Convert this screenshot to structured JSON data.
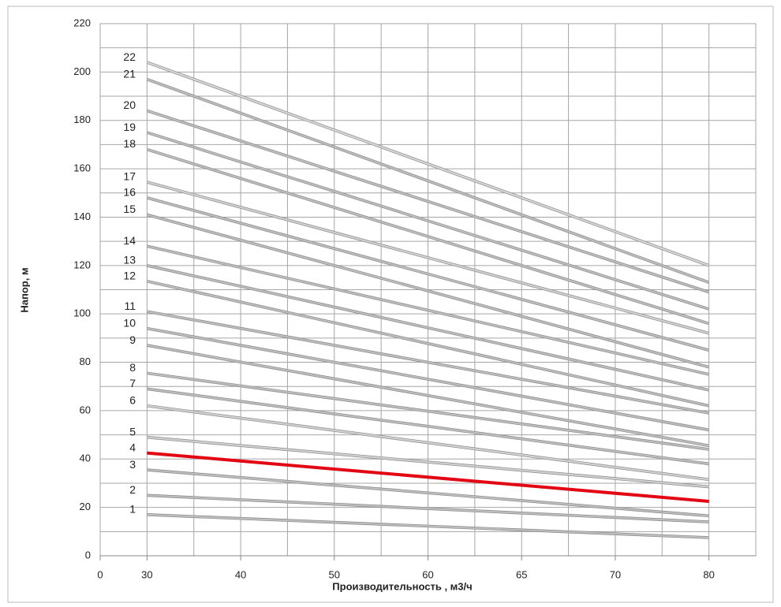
{
  "chart_data": {
    "type": "line",
    "x_label": "Производительность , м3/ч",
    "y_label": "Напор, м",
    "x": [
      30,
      80
    ],
    "xticks": [
      0,
      30,
      40,
      50,
      60,
      65,
      70,
      80
    ],
    "ylim": [
      0,
      220
    ],
    "yticks": [
      0,
      20,
      40,
      60,
      80,
      100,
      120,
      140,
      160,
      180,
      200,
      220
    ],
    "grid": true,
    "series": [
      {
        "name": "1",
        "color": "#bdbdbd",
        "values": [
          17,
          7.5
        ]
      },
      {
        "name": "2",
        "color": "#bdbdbd",
        "values": [
          25,
          14
        ]
      },
      {
        "name": "3",
        "color": "#bdbdbd",
        "values": [
          35.5,
          16.5
        ]
      },
      {
        "name": "4",
        "color": "#e30613",
        "values": [
          42.5,
          22.5
        ]
      },
      {
        "name": "5",
        "color": "#d0d0d0",
        "values": [
          49,
          28.5
        ]
      },
      {
        "name": "6",
        "color": "#d0d0d0",
        "values": [
          62,
          31.5
        ]
      },
      {
        "name": "7",
        "color": "#bdbdbd",
        "values": [
          69,
          38
        ]
      },
      {
        "name": "8",
        "color": "#bdbdbd",
        "values": [
          75.5,
          44
        ]
      },
      {
        "name": "9",
        "color": "#bdbdbd",
        "values": [
          87,
          45.5
        ]
      },
      {
        "name": "10",
        "color": "#bdbdbd",
        "values": [
          94,
          52
        ]
      },
      {
        "name": "11",
        "color": "#bdbdbd",
        "values": [
          101,
          59
        ]
      },
      {
        "name": "12",
        "color": "#bdbdbd",
        "values": [
          113.5,
          62
        ]
      },
      {
        "name": "13",
        "color": "#bdbdbd",
        "values": [
          120,
          68.5
        ]
      },
      {
        "name": "14",
        "color": "#bdbdbd",
        "values": [
          128,
          75
        ]
      },
      {
        "name": "15",
        "color": "#bdbdbd",
        "values": [
          141,
          78
        ]
      },
      {
        "name": "16",
        "color": "#bdbdbd",
        "values": [
          148,
          85
        ]
      },
      {
        "name": "17",
        "color": "#d0d0d0",
        "values": [
          154.5,
          92
        ]
      },
      {
        "name": "18",
        "color": "#bdbdbd",
        "values": [
          168,
          96
        ]
      },
      {
        "name": "19",
        "color": "#bdbdbd",
        "values": [
          175,
          102
        ]
      },
      {
        "name": "20",
        "color": "#bdbdbd",
        "values": [
          184,
          109
        ]
      },
      {
        "name": "21",
        "color": "#bdbdbd",
        "values": [
          197,
          113
        ]
      },
      {
        "name": "22",
        "color": "#d6d6d6",
        "values": [
          204,
          120
        ]
      }
    ]
  }
}
